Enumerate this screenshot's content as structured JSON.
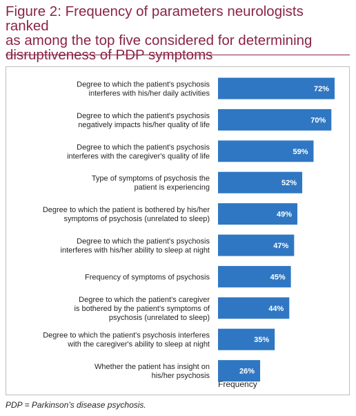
{
  "title": "Figure 2: Frequency of parameters neurologists ranked as among the top five considered for determining disruptiveness of PDP symptoms",
  "title_lines": [
    "Figure 2: Frequency of parameters neurologists ranked",
    "as among the top five considered for determining",
    "disruptiveness of PDP symptoms"
  ],
  "footnote": "PDP = Parkinson’s disease psychosis.",
  "colors": {
    "title": "#8a2347",
    "bar": "#2f77c2",
    "bar_label": "#ffffff",
    "panel_border": "#bdbdbd"
  },
  "chart_data": {
    "type": "bar",
    "orientation": "horizontal",
    "xlabel": "Frequency",
    "ylabel": "",
    "value_suffix": "%",
    "xlim": [
      0,
      72
    ],
    "grid": false,
    "legend": "none",
    "categories": [
      [
        "Degree to which the patient's psychosis",
        "interferes with his/her daily activities"
      ],
      [
        "Degree to which the patient's psychosis",
        "negatively impacts his/her quality of life"
      ],
      [
        "Degree to which the patient's psychosis",
        "interferes with the caregiver's quality of life"
      ],
      [
        "Type of symptoms of psychosis the",
        "patient is experiencing"
      ],
      [
        "Degree to which the patient is bothered by his/her",
        "symptoms of psychosis (unrelated to sleep)"
      ],
      [
        "Degree to which the patient's psychosis",
        "interferes with his/her ability to sleep at night"
      ],
      [
        "Frequency of symptoms of psychosis"
      ],
      [
        "Degree to which the patient's caregiver",
        "is bothered by the patient's symptoms of",
        "psychosis (unrelated to sleep)"
      ],
      [
        "Degree to which the patient's psychosis interferes",
        "with the caregiver's ability to sleep at night"
      ],
      [
        "Whether the patient has insight on",
        "his/her psychosis"
      ]
    ],
    "values": [
      72,
      70,
      59,
      52,
      49,
      47,
      45,
      44,
      35,
      26
    ]
  }
}
